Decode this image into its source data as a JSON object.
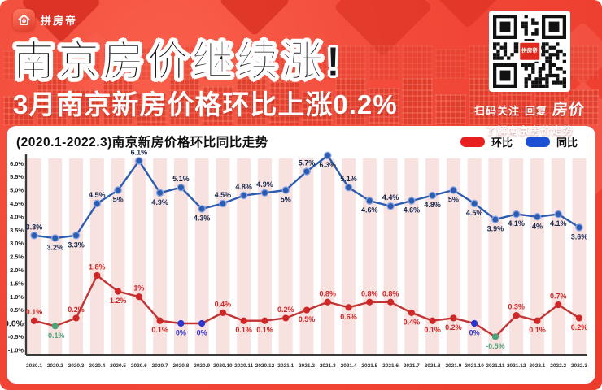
{
  "header": {
    "logo_text": "拼房帝",
    "title": "南京房价继续涨!",
    "subtitle": "3月南京新房价格环比上涨0.2%",
    "qr": {
      "line1_prefix": "扫码关注",
      "line1_mid": "回复",
      "line1_highlight": "房价",
      "line2": "了解南京房价走势",
      "badge": "拼房帝"
    }
  },
  "chart": {
    "title": "(2020.1-2022.3)南京新房价格环比同比走势",
    "legend": [
      {
        "label": "环比",
        "color": "#e81f1f"
      },
      {
        "label": "同比",
        "color": "#1b50d4"
      }
    ]
  },
  "chart_data": {
    "type": "line",
    "title": "(2020.1-2022.3)南京新房价格环比同比走势",
    "categories": [
      "2020.1",
      "2020.2",
      "2020.3",
      "2020.4",
      "2020.5",
      "2020.6",
      "2020.7",
      "2020.8",
      "2020.9",
      "2020.10",
      "2020.11",
      "2020.12",
      "2021.1",
      "2021.2",
      "2021.3",
      "2021.4",
      "2021.5",
      "2021.6",
      "2021.7",
      "2021.8",
      "2021.9",
      "2021.10",
      "2021.11",
      "2021.12",
      "2022.1",
      "2022.2",
      "2022.3"
    ],
    "series": [
      {
        "name": "环比",
        "color": "#cf2727",
        "line_color": "#c33434",
        "negative_color": "#4aa47a",
        "zero_color": "#2b35cf",
        "values": [
          0.1,
          -0.1,
          0.2,
          1.8,
          1.2,
          1,
          0.1,
          0,
          0,
          0.4,
          0.1,
          0.1,
          0.2,
          0.5,
          0.8,
          0.6,
          0.8,
          0.8,
          0.4,
          0.1,
          0.2,
          0,
          -0.5,
          0.3,
          0.1,
          0.7,
          0.2
        ],
        "labels": [
          "0.1%",
          "-0.1%",
          "0.2%",
          "1.8%",
          "1.2%",
          "1%",
          "0.1%",
          "0%",
          "0%",
          "0.4%",
          "0.1%",
          "0.1%",
          "0.2%",
          "0.5%",
          "0.8%",
          "0.6%",
          "0.8%",
          "0.8%",
          "0.4%",
          "0.1%",
          "0.2%",
          "0%",
          "-0.5%",
          "0.3%",
          "0.1%",
          "0.7%",
          "0.2%"
        ],
        "label_pos": [
          "above",
          "below",
          "above",
          "above",
          "below",
          "above",
          "below",
          "below",
          "below",
          "above",
          "below",
          "below",
          "above",
          "below",
          "above",
          "below",
          "above",
          "above",
          "below",
          "below",
          "below",
          "below",
          "below",
          "above",
          "below",
          "above",
          "below"
        ]
      },
      {
        "name": "同比",
        "color": "#2c5cb0",
        "line_color": "#2c5cb0",
        "ring": "#87a6e4",
        "label_color": "#17294d",
        "values": [
          3.3,
          3.2,
          3.3,
          4.5,
          5,
          6.1,
          4.9,
          5.1,
          4.3,
          4.5,
          4.8,
          4.9,
          5,
          5.7,
          6.3,
          5.1,
          4.6,
          4.4,
          4.6,
          4.8,
          5,
          4.5,
          3.9,
          4.1,
          4,
          4.1,
          3.6
        ],
        "labels": [
          "3.3%",
          "3.2%",
          "3.3%",
          "4.5%",
          "5%",
          "6.1%",
          "4.9%",
          "5.1%",
          "4.3%",
          "4.5%",
          "4.8%",
          "4.9%",
          "5%",
          "5.7%",
          "6.3%",
          "5.1%",
          "4.6%",
          "4.4%",
          "4.6%",
          "4.8%",
          "5%",
          "4.5%",
          "3.9%",
          "4.1%",
          "4%",
          "4.1%",
          "3.6%"
        ],
        "label_pos": [
          "above",
          "below",
          "below",
          "above",
          "below",
          "above",
          "below",
          "above",
          "below",
          "above",
          "above",
          "above",
          "below",
          "above",
          "below",
          "above",
          "below",
          "above",
          "below",
          "below",
          "below",
          "below",
          "below",
          "below",
          "below",
          "below",
          "below"
        ]
      }
    ],
    "yticks": [
      "6.0%",
      "5.5%",
      "5.0%",
      "4.5%",
      "4.0%",
      "3.5%",
      "3.0%",
      "2.5%",
      "2.0%",
      "1.5%",
      "1.0%",
      "0.5%",
      "0.0%",
      "-0.5%",
      "-1.0%"
    ],
    "ylim": [
      -1.2,
      6.2
    ],
    "stripe_color": "#f8e2e0",
    "axis_color": "#3a3a3a",
    "grid": false,
    "legend_position": "top-right"
  }
}
